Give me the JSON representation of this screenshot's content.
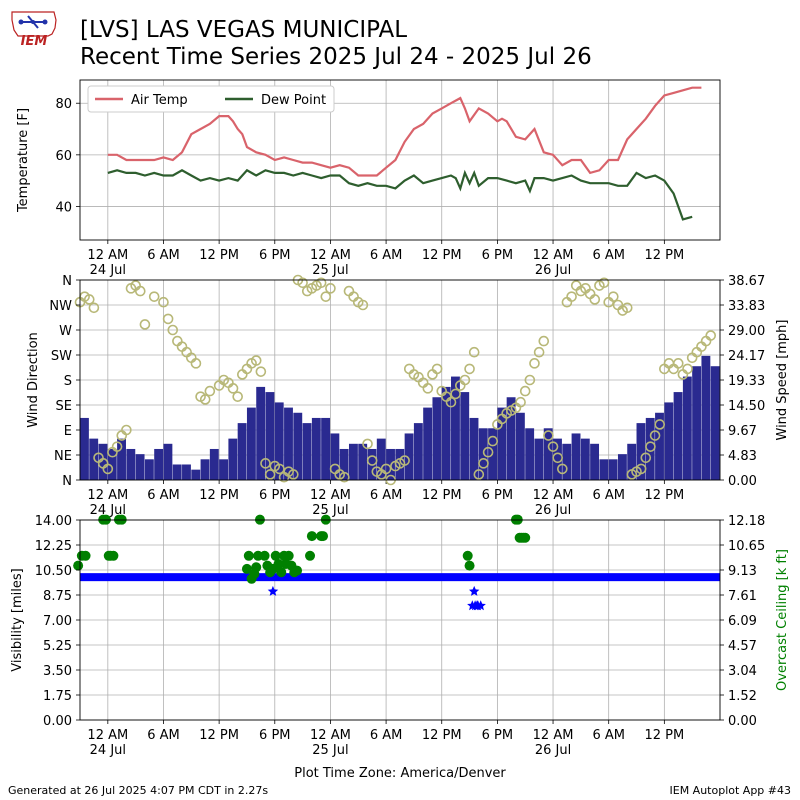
{
  "header": {
    "title_line1": "[LVS] LAS VEGAS MUNICIPAL",
    "title_line2": "Recent Time Series 2025 Jul 24 - 2025 Jul 26",
    "logo_text": "IEM"
  },
  "footer": {
    "generated": "Generated at 26 Jul 2025 4:07 PM CDT in 2.27s",
    "app": "IEM Autoplot App #43"
  },
  "colors": {
    "air_temp": "#d9636b",
    "dew_point": "#2e5e2e",
    "wind_bar": "#2a2a90",
    "wind_dir": "#b8b878",
    "visibility": "#0000ff",
    "ceiling": "#008000",
    "grid": "#b0b0b0"
  },
  "x_axis": {
    "tick_labels": [
      "12 AM",
      "6 AM",
      "12 PM",
      "6 PM",
      "12 AM",
      "6 AM",
      "12 PM",
      "6 PM",
      "12 AM",
      "6 AM",
      "12 PM"
    ],
    "tick_hours": [
      0,
      6,
      12,
      18,
      24,
      30,
      36,
      42,
      48,
      54,
      60
    ],
    "date_labels": [
      {
        "hour": 0,
        "text": "24 Jul"
      },
      {
        "hour": 24,
        "text": "25 Jul"
      },
      {
        "hour": 48,
        "text": "26 Jul"
      }
    ],
    "range_hours": [
      -3,
      66
    ],
    "timezone_label": "Plot Time Zone: America/Denver"
  },
  "chart_data": [
    {
      "type": "line",
      "ylabel": "Temperature [F]",
      "ylim": [
        27,
        89
      ],
      "yticks": [
        40,
        60,
        80
      ],
      "grid": true,
      "legend": "top-left",
      "series": [
        {
          "name": "Air Temp",
          "color": "#d9636b",
          "x": [
            0,
            1,
            2,
            3,
            4,
            5,
            6,
            7,
            8,
            9,
            10,
            11,
            12,
            13,
            13.5,
            14,
            14.5,
            15,
            16,
            17,
            18,
            19,
            20,
            21,
            22,
            23,
            24,
            25,
            26,
            27,
            28,
            29,
            30,
            31,
            32,
            33,
            34,
            35,
            36,
            37,
            38,
            38.5,
            39,
            40,
            41,
            42,
            42.5,
            43,
            44,
            45,
            46,
            47,
            48,
            49,
            50,
            51,
            52,
            53,
            54,
            55,
            56,
            57,
            58,
            59,
            60,
            61,
            62,
            63,
            64
          ],
          "values": [
            60,
            60,
            58,
            58,
            58,
            58,
            59,
            58,
            61,
            68,
            70,
            72,
            75,
            75,
            73,
            70,
            68,
            63,
            61,
            60,
            58,
            59,
            58,
            57,
            57,
            56,
            55,
            56,
            55,
            52,
            52,
            52,
            55,
            58,
            65,
            70,
            72,
            76,
            78,
            80,
            82,
            78,
            73,
            78,
            76,
            73,
            74,
            73,
            67,
            66,
            70,
            61,
            60,
            56,
            58,
            58,
            53,
            54,
            58,
            58,
            66,
            70,
            74,
            79,
            83,
            84,
            85,
            86,
            86
          ]
        },
        {
          "name": "Dew Point",
          "color": "#2e5e2e",
          "x": [
            0,
            1,
            2,
            3,
            4,
            5,
            6,
            7,
            8,
            9,
            10,
            11,
            12,
            13,
            14,
            15,
            16,
            17,
            18,
            19,
            20,
            21,
            22,
            23,
            24,
            25,
            26,
            27,
            28,
            29,
            30,
            31,
            32,
            33,
            34,
            35,
            36,
            37,
            37.5,
            38,
            38.5,
            39,
            39.5,
            40,
            41,
            42,
            43,
            44,
            45,
            45.5,
            46,
            47,
            48,
            49,
            50,
            51,
            52,
            53,
            54,
            55,
            56,
            57,
            58,
            59,
            60,
            61,
            62,
            63
          ],
          "values": [
            53,
            54,
            53,
            53,
            52,
            53,
            52,
            52,
            54,
            52,
            50,
            51,
            50,
            51,
            50,
            54,
            52,
            54,
            53,
            53,
            52,
            53,
            52,
            51,
            52,
            52,
            49,
            48,
            49,
            48,
            48,
            47,
            50,
            52,
            49,
            50,
            51,
            52,
            51,
            47,
            53,
            49,
            53,
            48,
            51,
            51,
            50,
            49,
            50,
            46,
            51,
            51,
            50,
            51,
            52,
            50,
            49,
            49,
            49,
            48,
            48,
            53,
            51,
            52,
            50,
            45,
            35,
            36
          ]
        }
      ]
    },
    {
      "type": "bar",
      "ylabel": "Wind Direction",
      "ylabel_right": "Wind Speed [mph]",
      "direction_labels": [
        "N",
        "NE",
        "E",
        "SE",
        "S",
        "SW",
        "W",
        "NW",
        "N"
      ],
      "direction_degrees": [
        0,
        45,
        90,
        135,
        180,
        225,
        270,
        315,
        360
      ],
      "speed_ticks": [
        "0.00",
        "4.83",
        "9.67",
        "14.50",
        "19.33",
        "24.17",
        "29.00",
        "33.83",
        "38.67"
      ],
      "speed_lim": [
        0,
        38.67
      ],
      "grid": true,
      "series": [
        {
          "name": "Wind Speed",
          "color": "#2a2a90",
          "x": [
            -3,
            -2,
            -1,
            0,
            1,
            2,
            3,
            4,
            5,
            6,
            7,
            8,
            9,
            10,
            11,
            12,
            13,
            14,
            15,
            16,
            17,
            18,
            19,
            20,
            21,
            22,
            23,
            24,
            25,
            26,
            27,
            28,
            29,
            30,
            31,
            32,
            33,
            34,
            35,
            36,
            37,
            38,
            39,
            40,
            41,
            42,
            43,
            44,
            45,
            46,
            47,
            48,
            49,
            50,
            51,
            52,
            53,
            54,
            55,
            56,
            57,
            58,
            59,
            60,
            61,
            62,
            63,
            64,
            65
          ],
          "values": [
            12,
            8,
            7,
            6,
            8,
            6,
            5,
            4,
            6,
            7,
            3,
            3,
            2,
            4,
            6,
            4,
            8,
            11,
            14,
            18,
            17,
            15,
            14,
            13,
            11,
            12,
            12,
            9,
            6,
            7,
            7,
            6,
            8,
            6,
            6,
            9,
            11,
            14,
            16,
            18,
            20,
            17,
            12,
            10,
            10,
            14,
            16,
            13,
            10,
            8,
            10,
            8,
            7,
            9,
            8,
            7,
            4,
            4,
            5,
            7,
            11,
            12,
            13,
            15,
            17,
            20,
            22,
            24,
            22
          ]
        },
        {
          "name": "Wind Direction",
          "color": "#b8b878",
          "x": [
            -3,
            -2.5,
            -2,
            -1.5,
            -1,
            -0.5,
            0,
            0.5,
            1,
            1.5,
            2,
            2.5,
            3,
            3.5,
            4,
            5,
            6,
            6.5,
            7,
            7.5,
            8,
            8.5,
            9,
            9.5,
            10,
            10.5,
            11,
            12,
            12.5,
            13,
            13.5,
            14,
            14.5,
            15,
            15.5,
            16,
            16.5,
            17,
            17.5,
            18,
            18.5,
            19,
            19.5,
            20,
            20.5,
            21,
            21.5,
            22,
            22.5,
            23,
            23.5,
            24,
            24.5,
            25,
            25.5,
            26,
            26.5,
            27,
            27.5,
            28,
            28.5,
            29,
            29.5,
            30,
            30.5,
            31,
            31.5,
            32,
            32.5,
            33,
            33.5,
            34,
            34.5,
            35,
            35.5,
            36,
            36.5,
            37,
            37.5,
            38,
            38.5,
            39,
            39.5,
            40,
            40.5,
            41,
            41.5,
            42,
            42.5,
            43,
            43.5,
            44,
            44.5,
            45,
            45.5,
            46,
            46.5,
            47,
            47.5,
            48,
            48.5,
            49,
            49.5,
            50,
            50.5,
            51,
            51.5,
            52,
            52.5,
            53,
            53.5,
            54,
            54.5,
            55,
            55.5,
            56,
            56.5,
            57,
            57.5,
            58,
            58.5,
            59,
            59.5,
            60,
            60.5,
            61,
            61.5,
            62,
            62.5,
            63,
            63.5,
            64,
            64.5,
            65
          ],
          "values": [
            320,
            330,
            325,
            310,
            40,
            30,
            20,
            50,
            60,
            80,
            90,
            345,
            350,
            340,
            280,
            330,
            320,
            290,
            270,
            250,
            240,
            230,
            220,
            210,
            150,
            145,
            160,
            170,
            180,
            175,
            165,
            150,
            190,
            200,
            210,
            215,
            195,
            30,
            10,
            25,
            20,
            5,
            15,
            10,
            360,
            355,
            340,
            345,
            350,
            355,
            330,
            345,
            20,
            10,
            5,
            340,
            330,
            320,
            315,
            65,
            35,
            15,
            10,
            20,
            0,
            25,
            30,
            35,
            200,
            190,
            185,
            175,
            165,
            190,
            200,
            160,
            150,
            140,
            155,
            170,
            180,
            200,
            230,
            10,
            30,
            50,
            70,
            100,
            110,
            120,
            125,
            130,
            140,
            160,
            180,
            210,
            230,
            250,
            80,
            60,
            40,
            20,
            320,
            330,
            350,
            340,
            345,
            335,
            325,
            350,
            355,
            320,
            330,
            315,
            305,
            310,
            10,
            15,
            20,
            40,
            60,
            80,
            100,
            200,
            210,
            200,
            210,
            190,
            200,
            220,
            230,
            240,
            250,
            260
          ]
        }
      ]
    },
    {
      "type": "scatter",
      "ylabel": "Visibility [miles]",
      "ylabel_right": "Overcast Ceiling [k ft]",
      "ylim": [
        0,
        14
      ],
      "yticks": [
        "0.00",
        "1.75",
        "3.50",
        "5.25",
        "7.00",
        "8.75",
        "10.50",
        "12.25",
        "14.00"
      ],
      "right_ticks": [
        "0.00",
        "1.52",
        "3.04",
        "4.57",
        "6.09",
        "7.61",
        "9.13",
        "10.65",
        "12.18"
      ],
      "right_lim": [
        0,
        12.18
      ],
      "grid": true,
      "series": [
        {
          "name": "Visibility",
          "color": "#0000ff",
          "baseline": 10,
          "x": [
            17.8,
            39.3,
            39.6,
            39.9,
            40.2,
            39.5,
            39.8
          ],
          "values": [
            9.0,
            8.0,
            8.0,
            8.0,
            8.0,
            9.0,
            8.0
          ]
        },
        {
          "name": "Overcast Ceiling",
          "color": "#008000",
          "x": [
            -3.2,
            -2.8,
            -2.4,
            -0.5,
            -0.2,
            0.1,
            0.3,
            0.6,
            1.2,
            1.5,
            15.0,
            15.2,
            15.5,
            15.8,
            16.0,
            16.2,
            16.4,
            16.9,
            17.2,
            17.5,
            17.8,
            18.1,
            18.4,
            18.7,
            19.0,
            19.2,
            19.5,
            19.8,
            20.1,
            20.4,
            21.8,
            22.0,
            23.0,
            23.2,
            23.5,
            38.8,
            39.0,
            44.0,
            44.2,
            44.4,
            44.6,
            44.8,
            45.0
          ],
          "values": [
            9.4,
            10.0,
            10.0,
            12.2,
            12.2,
            10.0,
            10.0,
            10.0,
            12.2,
            12.2,
            9.2,
            10.0,
            8.6,
            8.9,
            9.3,
            10.0,
            12.2,
            10.0,
            9.4,
            9.0,
            9.2,
            10.0,
            9.5,
            9.0,
            10.0,
            9.5,
            10.0,
            9.4,
            9.0,
            9.1,
            10.0,
            11.2,
            11.2,
            11.2,
            12.2,
            10.0,
            9.4,
            12.2,
            12.2,
            11.1,
            11.1,
            11.1,
            11.1
          ]
        }
      ]
    }
  ]
}
